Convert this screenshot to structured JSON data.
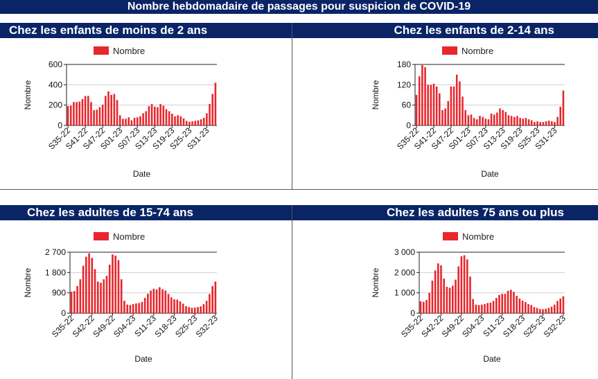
{
  "page_title": "Nombre hebdomadaire de passages pour suspicion de COVID-19",
  "bar_color": "#e8262c",
  "chart_data": [
    {
      "type": "bar",
      "title": "Chez les enfants de moins de 2 ans",
      "legend": "Nombre",
      "xlabel": "Date",
      "ylabel": "Nombre",
      "ylim": [
        0,
        600
      ],
      "yticks": [
        0,
        200,
        400,
        600
      ],
      "ytick_labels": [
        "0",
        "200",
        "400",
        "600"
      ],
      "xtick_labels": [
        "S35-22",
        "S41-22",
        "S47-22",
        "S01-23",
        "S07-23",
        "S13-23",
        "S19-23",
        "S25-23",
        "S31-23"
      ],
      "xtick_every": 6,
      "values": [
        190,
        195,
        230,
        230,
        235,
        260,
        290,
        290,
        230,
        150,
        155,
        180,
        205,
        290,
        335,
        300,
        310,
        250,
        100,
        65,
        65,
        80,
        50,
        75,
        80,
        90,
        120,
        140,
        190,
        210,
        185,
        180,
        210,
        195,
        160,
        140,
        115,
        90,
        100,
        90,
        70,
        45,
        35,
        40,
        45,
        50,
        60,
        75,
        120,
        210,
        310,
        420
      ]
    },
    {
      "type": "bar",
      "title": "Chez les enfants de 2-14 ans",
      "legend": "Nombre",
      "xlabel": "Date",
      "ylabel": "Nombre",
      "ylim": [
        0,
        180
      ],
      "yticks": [
        0,
        60,
        120,
        180
      ],
      "ytick_labels": [
        "0",
        "60",
        "120",
        "180"
      ],
      "xtick_labels": [
        "S35-22",
        "S41-22",
        "S47-22",
        "S01-23",
        "S07-23",
        "S13-23",
        "S19-23",
        "S25-23",
        "S31-23"
      ],
      "xtick_every": 6,
      "values": [
        90,
        145,
        178,
        172,
        120,
        120,
        123,
        115,
        95,
        45,
        50,
        72,
        115,
        115,
        150,
        130,
        85,
        45,
        30,
        32,
        22,
        18,
        28,
        25,
        20,
        18,
        35,
        32,
        38,
        50,
        45,
        40,
        30,
        28,
        25,
        28,
        22,
        20,
        22,
        18,
        15,
        10,
        12,
        10,
        10,
        12,
        14,
        12,
        10,
        25,
        55,
        103
      ]
    },
    {
      "type": "bar",
      "title": "Chez les adultes de 15-74 ans",
      "legend": "Nombre",
      "xlabel": "Date",
      "ylabel": "Nombre",
      "ylim": [
        0,
        2700
      ],
      "yticks": [
        0,
        900,
        1800,
        2700
      ],
      "ytick_labels": [
        "0",
        "900",
        "1 800",
        "2 700"
      ],
      "xtick_labels": [
        "S35-22",
        "S42-22",
        "S49-22",
        "S04-23",
        "S11-23",
        "S18-23",
        "S25-23",
        "S32-23"
      ],
      "xtick_every": 7,
      "values": [
        950,
        980,
        1200,
        1500,
        2100,
        2500,
        2650,
        2450,
        1950,
        1400,
        1350,
        1500,
        1650,
        2150,
        2600,
        2550,
        2350,
        1500,
        550,
        380,
        360,
        400,
        430,
        450,
        500,
        680,
        860,
        1000,
        1080,
        1050,
        1150,
        1060,
        1000,
        850,
        700,
        620,
        600,
        520,
        420,
        310,
        270,
        240,
        250,
        270,
        300,
        400,
        550,
        850,
        1200,
        1400
      ]
    },
    {
      "type": "bar",
      "title": "Chez les adultes 75 ans ou plus",
      "legend": "Nombre",
      "xlabel": "Date",
      "ylabel": "Nombre",
      "ylim": [
        0,
        3000
      ],
      "yticks": [
        0,
        1000,
        2000,
        3000
      ],
      "ytick_labels": [
        "0",
        "1 000",
        "2 000",
        "3 000"
      ],
      "xtick_labels": [
        "S35-22",
        "S42-22",
        "S49-22",
        "S04-23",
        "S11-23",
        "S18-23",
        "S25-23",
        "S32-23"
      ],
      "xtick_every": 7,
      "values": [
        580,
        560,
        650,
        1000,
        1600,
        2100,
        2450,
        2350,
        1700,
        1300,
        1250,
        1350,
        1650,
        2300,
        2800,
        2850,
        2650,
        1800,
        700,
        420,
        400,
        420,
        450,
        500,
        520,
        600,
        750,
        900,
        950,
        950,
        1100,
        1150,
        1050,
        850,
        720,
        620,
        550,
        450,
        400,
        300,
        260,
        200,
        200,
        220,
        260,
        320,
        420,
        600,
        720,
        830
      ]
    }
  ]
}
